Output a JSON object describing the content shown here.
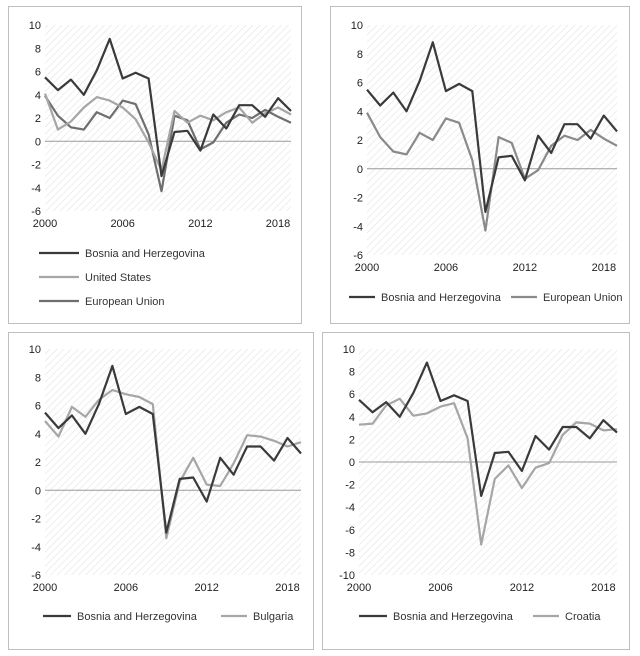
{
  "chart_data": [
    {
      "type": "line",
      "title": "",
      "xlabel": "",
      "ylabel": "",
      "xlim": [
        2000,
        2019
      ],
      "ylim": [
        -6,
        10
      ],
      "xticks": [
        2000,
        2006,
        2012,
        2018
      ],
      "yticks": [
        -6,
        -4,
        -2,
        0,
        2,
        4,
        6,
        8,
        10
      ],
      "grid": false,
      "background": "hatched",
      "legend_placement": "below",
      "x": [
        2000,
        2001,
        2002,
        2003,
        2004,
        2005,
        2006,
        2007,
        2008,
        2009,
        2010,
        2011,
        2012,
        2013,
        2014,
        2015,
        2016,
        2017,
        2018,
        2019
      ],
      "series": [
        {
          "name": "Bosnia and Herzegovina",
          "color": "#3a3a3a",
          "values": [
            5.5,
            4.4,
            5.3,
            4.0,
            6.1,
            8.8,
            5.4,
            5.9,
            5.4,
            -3.0,
            0.8,
            0.9,
            -0.8,
            2.3,
            1.1,
            3.1,
            3.1,
            2.1,
            3.7,
            2.6
          ]
        },
        {
          "name": "United States",
          "color": "#a6a6a6",
          "values": [
            4.1,
            1.0,
            1.7,
            2.9,
            3.8,
            3.5,
            2.9,
            1.9,
            -0.1,
            -2.5,
            2.6,
            1.6,
            2.2,
            1.8,
            2.5,
            2.9,
            1.6,
            2.4,
            2.9,
            2.3
          ]
        },
        {
          "name": "European Union",
          "color": "#6e6e6e",
          "values": [
            3.9,
            2.2,
            1.2,
            1.0,
            2.5,
            2.0,
            3.5,
            3.2,
            0.6,
            -4.3,
            2.2,
            1.8,
            -0.7,
            -0.1,
            1.6,
            2.3,
            2.0,
            2.7,
            2.1,
            1.6
          ]
        }
      ]
    },
    {
      "type": "line",
      "title": "",
      "xlabel": "",
      "ylabel": "",
      "xlim": [
        2000,
        2019
      ],
      "ylim": [
        -6,
        10
      ],
      "xticks": [
        2000,
        2006,
        2012,
        2018
      ],
      "yticks": [
        -6,
        -4,
        -2,
        0,
        2,
        4,
        6,
        8,
        10
      ],
      "grid": false,
      "background": "hatched",
      "legend_placement": "below",
      "x": [
        2000,
        2001,
        2002,
        2003,
        2004,
        2005,
        2006,
        2007,
        2008,
        2009,
        2010,
        2011,
        2012,
        2013,
        2014,
        2015,
        2016,
        2017,
        2018,
        2019
      ],
      "series": [
        {
          "name": "Bosnia and Herzegovina",
          "color": "#3a3a3a",
          "values": [
            5.5,
            4.4,
            5.3,
            4.0,
            6.1,
            8.8,
            5.4,
            5.9,
            5.4,
            -3.0,
            0.8,
            0.9,
            -0.8,
            2.3,
            1.1,
            3.1,
            3.1,
            2.1,
            3.7,
            2.6
          ]
        },
        {
          "name": "European Union",
          "color": "#8a8a8a",
          "values": [
            3.9,
            2.2,
            1.2,
            1.0,
            2.5,
            2.0,
            3.5,
            3.2,
            0.6,
            -4.3,
            2.2,
            1.8,
            -0.7,
            -0.1,
            1.6,
            2.3,
            2.0,
            2.7,
            2.1,
            1.6
          ]
        }
      ]
    },
    {
      "type": "line",
      "title": "",
      "xlabel": "",
      "ylabel": "",
      "xlim": [
        2000,
        2019
      ],
      "ylim": [
        -6,
        10
      ],
      "xticks": [
        2000,
        2006,
        2012,
        2018
      ],
      "yticks": [
        -6,
        -4,
        -2,
        0,
        2,
        4,
        6,
        8,
        10
      ],
      "grid": false,
      "background": "hatched",
      "legend_placement": "below",
      "x": [
        2000,
        2001,
        2002,
        2003,
        2004,
        2005,
        2006,
        2007,
        2008,
        2009,
        2010,
        2011,
        2012,
        2013,
        2014,
        2015,
        2016,
        2017,
        2018,
        2019
      ],
      "series": [
        {
          "name": "Bosnia and Herzegovina",
          "color": "#3a3a3a",
          "values": [
            5.5,
            4.4,
            5.3,
            4.0,
            6.1,
            8.8,
            5.4,
            5.9,
            5.4,
            -3.0,
            0.8,
            0.9,
            -0.8,
            2.3,
            1.1,
            3.1,
            3.1,
            2.1,
            3.7,
            2.6
          ]
        },
        {
          "name": "Bulgaria",
          "color": "#a6a6a6",
          "values": [
            4.9,
            3.8,
            5.9,
            5.2,
            6.4,
            7.1,
            6.8,
            6.6,
            6.1,
            -3.4,
            0.6,
            2.3,
            0.4,
            0.3,
            1.9,
            3.9,
            3.8,
            3.5,
            3.1,
            3.4
          ]
        }
      ]
    },
    {
      "type": "line",
      "title": "",
      "xlabel": "",
      "ylabel": "",
      "xlim": [
        2000,
        2019
      ],
      "ylim": [
        -10,
        10
      ],
      "xticks": [
        2000,
        2006,
        2012,
        2018
      ],
      "yticks": [
        -10,
        -8,
        -6,
        -4,
        -2,
        0,
        2,
        4,
        6,
        8,
        10
      ],
      "grid": false,
      "background": "hatched",
      "legend_placement": "below",
      "x": [
        2000,
        2001,
        2002,
        2003,
        2004,
        2005,
        2006,
        2007,
        2008,
        2009,
        2010,
        2011,
        2012,
        2013,
        2014,
        2015,
        2016,
        2017,
        2018,
        2019
      ],
      "series": [
        {
          "name": "Bosnia and Herzegovina",
          "color": "#3a3a3a",
          "values": [
            5.5,
            4.4,
            5.3,
            4.0,
            6.1,
            8.8,
            5.4,
            5.9,
            5.4,
            -3.0,
            0.8,
            0.9,
            -0.8,
            2.3,
            1.1,
            3.1,
            3.1,
            2.1,
            3.7,
            2.6
          ]
        },
        {
          "name": "Croatia",
          "color": "#a6a6a6",
          "values": [
            3.3,
            3.4,
            5.0,
            5.6,
            4.1,
            4.3,
            4.9,
            5.2,
            2.1,
            -7.3,
            -1.5,
            -0.3,
            -2.3,
            -0.5,
            -0.1,
            2.4,
            3.5,
            3.4,
            2.8,
            2.9
          ]
        }
      ]
    }
  ]
}
